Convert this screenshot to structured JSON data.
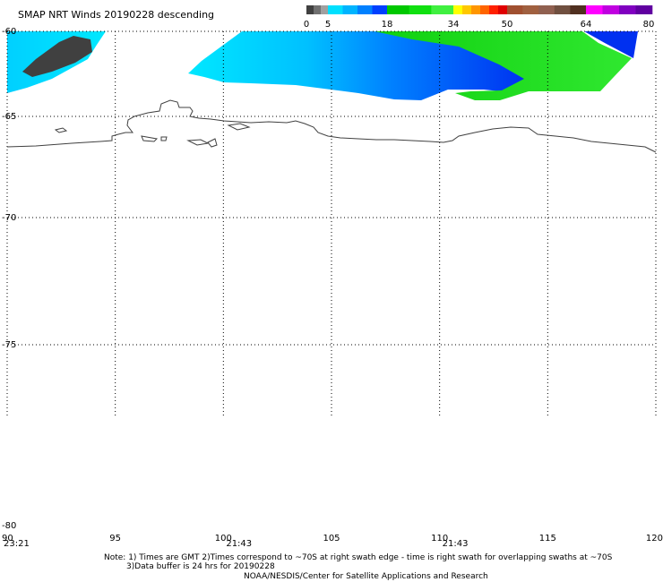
{
  "header": {
    "title": "SMAP NRT Winds  20190228 descending"
  },
  "colorbar": {
    "ticks": [
      "0",
      "5",
      "18",
      "34",
      "50",
      "64",
      "80"
    ],
    "segments": [
      {
        "from": 0,
        "to": 5,
        "colors": [
          "#404040",
          "#707070",
          "#a0a0a0"
        ]
      },
      {
        "from": 5,
        "to": 18,
        "colors": [
          "#00e0ff",
          "#00b4ff",
          "#0080ff",
          "#0040ff"
        ]
      },
      {
        "from": 18,
        "to": 34,
        "colors": [
          "#00c800",
          "#10e010",
          "#40f040"
        ]
      },
      {
        "from": 34,
        "to": 50,
        "colors": [
          "#ffff00",
          "#ffc800",
          "#ff9600",
          "#ff6400",
          "#ff2000",
          "#e00000"
        ]
      },
      {
        "from": 50,
        "to": 64,
        "colors": [
          "#a05030",
          "#a06040",
          "#906050",
          "#705040",
          "#503020"
        ]
      },
      {
        "from": 64,
        "to": 80,
        "colors": [
          "#ff00ff",
          "#c000e0",
          "#8000c0",
          "#6000a0"
        ]
      }
    ]
  },
  "map": {
    "lon_range": [
      90,
      120
    ],
    "lat_range": [
      -60,
      -80
    ],
    "lat_labels": [
      "-60",
      "-65",
      "-70",
      "-75",
      "-80"
    ],
    "lon_labels": [
      "90",
      "95",
      "100",
      "105",
      "110",
      "115",
      "120"
    ],
    "time_labels": [
      {
        "lon": 90,
        "text": "23:21"
      },
      {
        "lon": 100,
        "text": "21:43"
      },
      {
        "lon": 110,
        "text": "21:43"
      }
    ],
    "colors": {
      "gray": "#404040",
      "cyan": "#00d8ff",
      "blue": "#0040ff",
      "green": "#20e020",
      "coast": "#404040"
    }
  },
  "footer": {
    "note1": "Note: 1) Times are GMT 2)Times correspond to ~70S at right swath edge - time is right swath for overlapping swaths at ~70S",
    "note2": "3)Data buffer is 24 hrs for 20190228",
    "credit": "NOAA/NESDIS/Center for Satellite Applications and Research"
  }
}
